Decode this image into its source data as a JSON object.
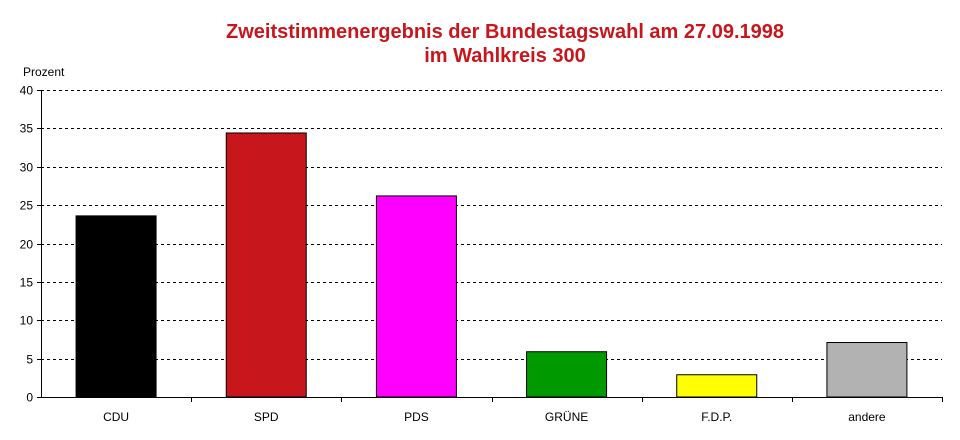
{
  "chart_data": {
    "type": "bar",
    "title_line1": "Zweitstimmenergebnis der Bundestagswahl am 27.09.1998",
    "title_line2": "im Wahlkreis 300",
    "ylabel": "Prozent",
    "xlabel": "",
    "ylim": [
      0,
      40
    ],
    "yticks": [
      0,
      5,
      10,
      15,
      20,
      25,
      30,
      35,
      40
    ],
    "grid": true,
    "categories": [
      "CDU",
      "SPD",
      "PDS",
      "GRÜNE",
      "F.D.P.",
      "andere"
    ],
    "values": [
      23.6,
      34.4,
      26.2,
      5.9,
      2.9,
      7.1
    ],
    "colors": [
      "#000000",
      "#c8161d",
      "#ff00ff",
      "#009a00",
      "#ffff00",
      "#b2b2b2"
    ]
  }
}
